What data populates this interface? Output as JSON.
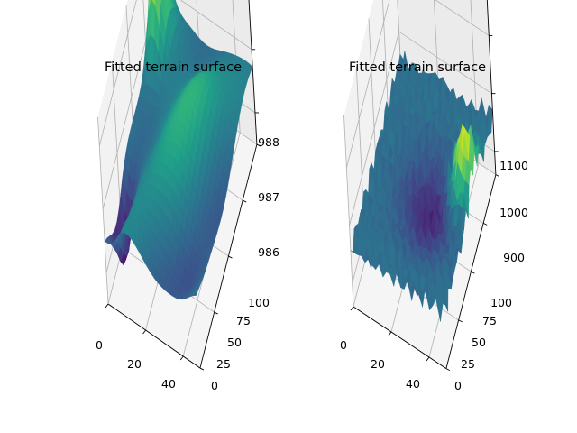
{
  "chart_data": [
    {
      "type": "surface",
      "title": "Fitted terrain surface",
      "colormap": "viridis",
      "x_ticks": [
        0,
        20,
        40
      ],
      "y_ticks": [
        0,
        25,
        50,
        75,
        100
      ],
      "z_ticks": [
        986,
        987,
        988
      ],
      "xlim": [
        0,
        49
      ],
      "ylim": [
        0,
        100
      ],
      "zlim": [
        985.5,
        988.45
      ],
      "z_range": [
        985.6,
        988.35
      ],
      "terrain": "smooth"
    },
    {
      "type": "surface",
      "title": "Fitted terrain surface",
      "colormap": "viridis",
      "x_ticks": [
        0,
        20,
        40
      ],
      "y_ticks": [
        0,
        25,
        50,
        75,
        100
      ],
      "z_ticks": [
        900,
        1000,
        1100
      ],
      "xlim": [
        0,
        49
      ],
      "ylim": [
        0,
        100
      ],
      "zlim": [
        860,
        1190
      ],
      "z_range": [
        905,
        1050
      ],
      "terrain": "rough"
    }
  ]
}
